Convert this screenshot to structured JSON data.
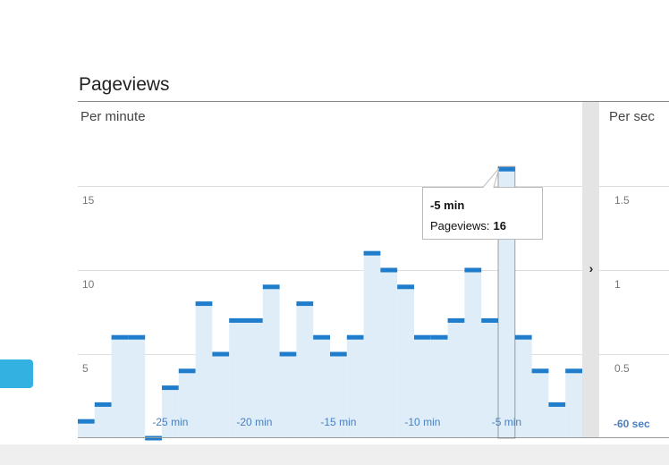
{
  "chart_data": {
    "type": "bar",
    "title": "Pageviews",
    "subtitle": "Per minute",
    "categories": [
      null,
      null,
      null,
      null,
      null,
      "-25 min",
      null,
      null,
      null,
      null,
      "-20 min",
      null,
      null,
      null,
      null,
      "-15 min",
      null,
      null,
      null,
      null,
      "-10 min",
      null,
      null,
      null,
      null,
      "-5 min",
      null,
      null,
      null,
      null
    ],
    "values": [
      1,
      2,
      6,
      6,
      0,
      3,
      4,
      8,
      5,
      7,
      7,
      9,
      5,
      8,
      6,
      5,
      6,
      11,
      10,
      9,
      6,
      6,
      7,
      10,
      7,
      16,
      6,
      4,
      2,
      4
    ],
    "color": "#1f7dcc",
    "fill": "#deedf8",
    "ylim": [
      0,
      20
    ],
    "yticks": [
      5,
      10,
      15
    ],
    "grid": true,
    "tooltip": {
      "series_label": "Pageviews:",
      "index": 25
    }
  },
  "side_chart": {
    "subtitle": "Per sec",
    "ylim": [
      0,
      2
    ],
    "yticks": [
      0.5,
      1,
      1.5
    ],
    "x_label": "-60 sec"
  }
}
